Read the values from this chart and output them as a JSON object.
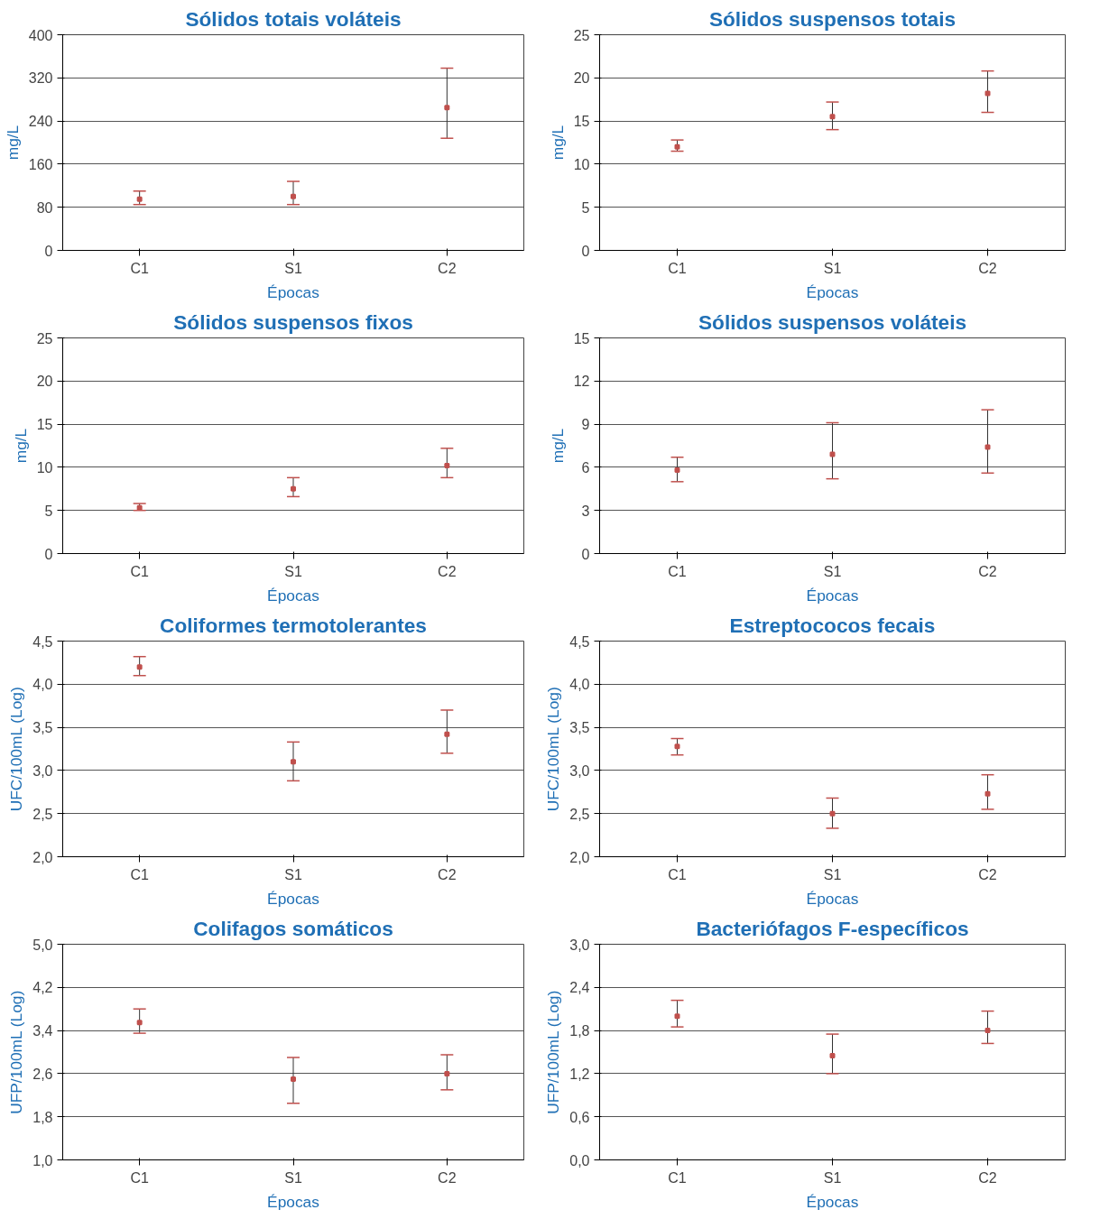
{
  "chart_data": [
    {
      "type": "scatter",
      "title": "Sólidos totais voláteis",
      "marker": "square",
      "xlabel": "Épocas",
      "ylabel": "mg/L",
      "categories": [
        "C1",
        "S1",
        "C2"
      ],
      "ylim": [
        0,
        400
      ],
      "yticks": [
        0,
        80,
        160,
        240,
        320,
        400
      ],
      "grid": "y",
      "series": [
        {
          "color": "#c0504d",
          "values": [
            95,
            100,
            265
          ],
          "errors": [
            [
              85,
              110
            ],
            [
              85,
              128
            ],
            [
              208,
              338
            ]
          ]
        }
      ]
    },
    {
      "type": "scatter",
      "title": "Sólidos suspensos totais",
      "marker": "square",
      "xlabel": "Épocas",
      "ylabel": "mg/L",
      "categories": [
        "C1",
        "S1",
        "C2"
      ],
      "ylim": [
        0,
        25
      ],
      "yticks": [
        0,
        5,
        10,
        15,
        20,
        25
      ],
      "grid": "y",
      "series": [
        {
          "color": "#c0504d",
          "values": [
            12,
            15.5,
            18.2
          ],
          "errors": [
            [
              11.5,
              12.8
            ],
            [
              14,
              17.2
            ],
            [
              16,
              20.8
            ]
          ]
        }
      ]
    },
    {
      "type": "scatter",
      "title": "Sólidos suspensos fixos",
      "marker": "square",
      "xlabel": "Épocas",
      "ylabel": "mg/L",
      "categories": [
        "C1",
        "S1",
        "C2"
      ],
      "ylim": [
        0,
        25
      ],
      "yticks": [
        0,
        5,
        10,
        15,
        20,
        25
      ],
      "grid": "y",
      "series": [
        {
          "color": "#c0504d",
          "values": [
            5.3,
            7.5,
            10.2
          ],
          "errors": [
            [
              5,
              5.8
            ],
            [
              6.6,
              8.8
            ],
            [
              8.8,
              12.2
            ]
          ]
        }
      ]
    },
    {
      "type": "scatter",
      "title": "Sólidos suspensos voláteis",
      "marker": "square",
      "xlabel": "Épocas",
      "ylabel": "mg/L",
      "categories": [
        "C1",
        "S1",
        "C2"
      ],
      "ylim": [
        0,
        15
      ],
      "yticks": [
        0,
        3,
        6,
        9,
        12,
        15
      ],
      "grid": "y",
      "series": [
        {
          "color": "#c0504d",
          "values": [
            5.8,
            6.9,
            7.4
          ],
          "errors": [
            [
              5,
              6.7
            ],
            [
              5.2,
              9.1
            ],
            [
              5.6,
              10
            ]
          ]
        }
      ]
    },
    {
      "type": "scatter",
      "title": "Coliformes termotolerantes",
      "marker": "square",
      "xlabel": "Épocas",
      "ylabel": "UFC/100mL (Log)",
      "categories": [
        "C1",
        "S1",
        "C2"
      ],
      "ylim": [
        2,
        4.5
      ],
      "yticks": [
        {
          "value": 2,
          "label": "2,0"
        },
        {
          "value": 2.5,
          "label": "2,5"
        },
        {
          "value": 3,
          "label": "3,0"
        },
        {
          "value": 3.5,
          "label": "3,5"
        },
        {
          "value": 4,
          "label": "4,0"
        },
        {
          "value": 4.5,
          "label": "4,5"
        }
      ],
      "grid": "y",
      "series": [
        {
          "color": "#c0504d",
          "values": [
            4.2,
            3.1,
            3.42
          ],
          "errors": [
            [
              4.1,
              4.32
            ],
            [
              2.88,
              3.33
            ],
            [
              3.2,
              3.7
            ]
          ]
        }
      ]
    },
    {
      "type": "scatter",
      "title": "Estreptococos fecais",
      "marker": "square",
      "xlabel": "Épocas",
      "ylabel": "UFC/100mL (Log)",
      "categories": [
        "C1",
        "S1",
        "C2"
      ],
      "ylim": [
        2,
        4.5
      ],
      "yticks": [
        {
          "value": 2,
          "label": "2,0"
        },
        {
          "value": 2.5,
          "label": "2,5"
        },
        {
          "value": 3,
          "label": "3,0"
        },
        {
          "value": 3.5,
          "label": "3,5"
        },
        {
          "value": 4,
          "label": "4,0"
        },
        {
          "value": 4.5,
          "label": "4,5"
        }
      ],
      "grid": "y",
      "series": [
        {
          "color": "#c0504d",
          "values": [
            3.28,
            2.5,
            2.73
          ],
          "errors": [
            [
              3.18,
              3.37
            ],
            [
              2.33,
              2.68
            ],
            [
              2.55,
              2.95
            ]
          ]
        }
      ]
    },
    {
      "type": "scatter",
      "title": "Colifagos somáticos",
      "marker": "square",
      "xlabel": "Épocas",
      "ylabel": "UFP/100mL (Log)",
      "categories": [
        "C1",
        "S1",
        "C2"
      ],
      "ylim": [
        1,
        5
      ],
      "yticks": [
        {
          "value": 1,
          "label": "1,0"
        },
        {
          "value": 1.8,
          "label": "1,8"
        },
        {
          "value": 2.6,
          "label": "2,6"
        },
        {
          "value": 3.4,
          "label": "3,4"
        },
        {
          "value": 4.2,
          "label": "4,2"
        },
        {
          "value": 5,
          "label": "5,0"
        }
      ],
      "grid": "y",
      "series": [
        {
          "color": "#c0504d",
          "values": [
            3.55,
            2.5,
            2.6
          ],
          "errors": [
            [
              3.35,
              3.8
            ],
            [
              2.05,
              2.9
            ],
            [
              2.3,
              2.95
            ]
          ]
        }
      ]
    },
    {
      "type": "scatter",
      "title": "Bacteriófagos F-específicos",
      "marker": "square",
      "xlabel": "Épocas",
      "ylabel": "UFP/100mL (Log)",
      "categories": [
        "C1",
        "S1",
        "C2"
      ],
      "ylim": [
        0,
        3
      ],
      "yticks": [
        {
          "value": 0,
          "label": "0,0"
        },
        {
          "value": 0.6,
          "label": "0,6"
        },
        {
          "value": 1.2,
          "label": "1,2"
        },
        {
          "value": 1.8,
          "label": "1,8"
        },
        {
          "value": 2.4,
          "label": "2,4"
        },
        {
          "value": 3,
          "label": "3,0"
        }
      ],
      "grid": "y",
      "series": [
        {
          "color": "#c0504d",
          "values": [
            2.0,
            1.45,
            1.8
          ],
          "errors": [
            [
              1.85,
              2.22
            ],
            [
              1.2,
              1.75
            ],
            [
              1.62,
              2.07
            ]
          ]
        }
      ]
    }
  ]
}
